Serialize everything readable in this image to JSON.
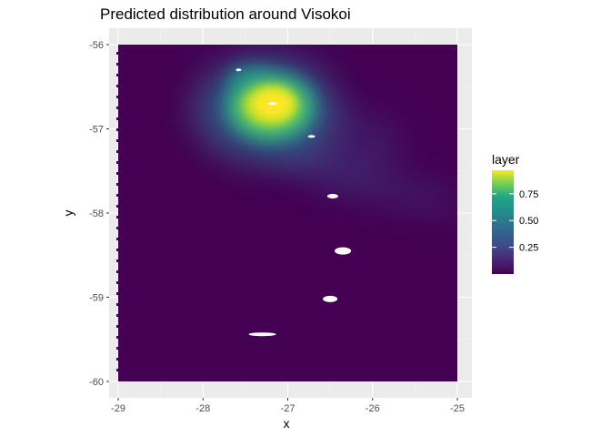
{
  "chart_data": {
    "type": "heatmap",
    "title": "Predicted distribution around Visokoi",
    "xlabel": "x",
    "ylabel": "y",
    "xlim": [
      -29.1,
      -24.85
    ],
    "ylim": [
      -60.15,
      -55.95
    ],
    "x_ticks": [
      -29,
      -28,
      -27,
      -26,
      -25
    ],
    "y_ticks": [
      -56,
      -57,
      -58,
      -59,
      -60
    ],
    "x_tick_labels": [
      "-29",
      "-28",
      "-27",
      "-26",
      "-25"
    ],
    "y_tick_labels": [
      "-56",
      "-57",
      "-58",
      "-59",
      "-60"
    ],
    "grid": true,
    "colormap": "viridis",
    "raster_extent": {
      "x": [
        -29.0,
        -25.0
      ],
      "y": [
        -60.0,
        -56.0
      ]
    },
    "legend": {
      "title": "layer",
      "position": "right",
      "range": [
        0.0,
        0.97
      ],
      "breaks": [
        0.25,
        0.5,
        0.75
      ],
      "break_labels": [
        "0.25",
        "0.50",
        "0.75"
      ]
    },
    "hotspots": [
      {
        "x": -27.2,
        "y": -56.72,
        "value": 0.97
      },
      {
        "x": -27.45,
        "y": -56.45,
        "value": 0.4
      },
      {
        "x": -26.4,
        "y": -57.2,
        "value": 0.18
      }
    ],
    "missing_cells": [
      {
        "x": -27.18,
        "y": -56.7
      },
      {
        "x": -27.58,
        "y": -56.3
      },
      {
        "x": -26.72,
        "y": -57.09
      },
      {
        "x": -26.47,
        "y": -57.8
      },
      {
        "x": -26.35,
        "y": -58.45
      },
      {
        "x": -26.5,
        "y": -59.02
      },
      {
        "x": -27.3,
        "y": -59.44
      }
    ]
  },
  "colors": {
    "panel_background": "#EBEBEB",
    "grid_major": "#FFFFFF",
    "low": "#440154",
    "high": "#FDE725"
  }
}
